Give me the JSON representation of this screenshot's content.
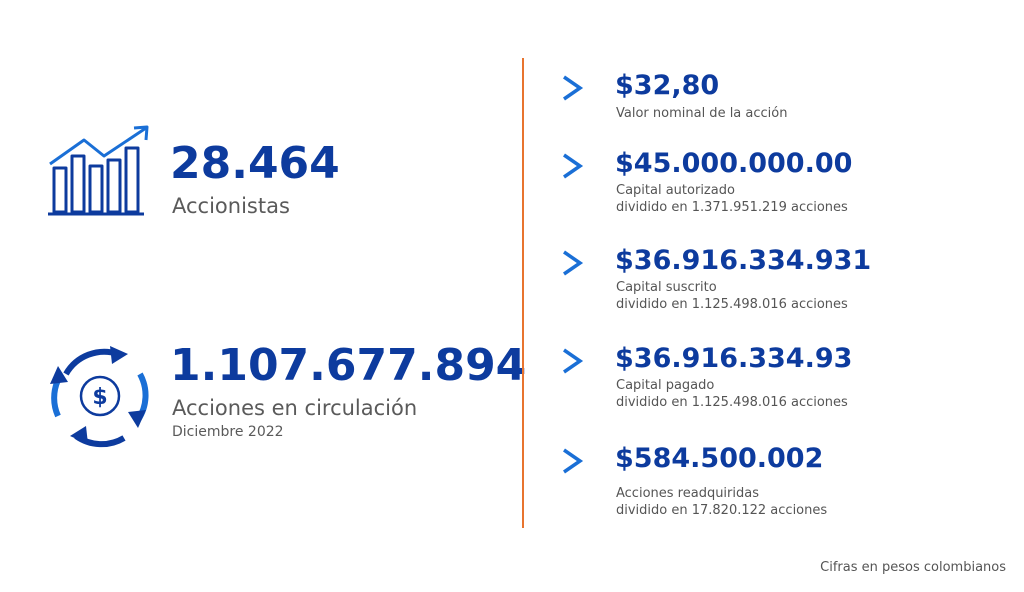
{
  "colors": {
    "primary": "#0d3b9e",
    "accent": "#1a6fd6",
    "divider": "#e8742f",
    "text": "#5a5a5a"
  },
  "stats": [
    {
      "value": "28.464",
      "label": "Accionistas",
      "sublabel": "",
      "icon": "growth-chart-icon"
    },
    {
      "value": "1.107.677.894",
      "label": "Acciones en circulación",
      "sublabel": "Diciembre 2022",
      "icon": "dollar-cycle-icon"
    }
  ],
  "items": [
    {
      "value": "$32,80",
      "line1": "Valor nominal de la acción",
      "line2": ""
    },
    {
      "value": "$45.000.000.00",
      "line1": "Capital autorizado",
      "line2": "dividido en 1.371.951.219 acciones"
    },
    {
      "value": "$36.916.334.931",
      "line1": "Capital suscrito",
      "line2": "dividido en 1.125.498.016 acciones"
    },
    {
      "value": "$36.916.334.93",
      "line1": "Capital pagado",
      "line2": "dividido en 1.125.498.016 acciones"
    },
    {
      "value": "$584.500.002",
      "line1": "Acciones readquiridas",
      "line2": "dividido en 17.820.122 acciones"
    }
  ],
  "footnote": "Cifras en pesos colombianos"
}
